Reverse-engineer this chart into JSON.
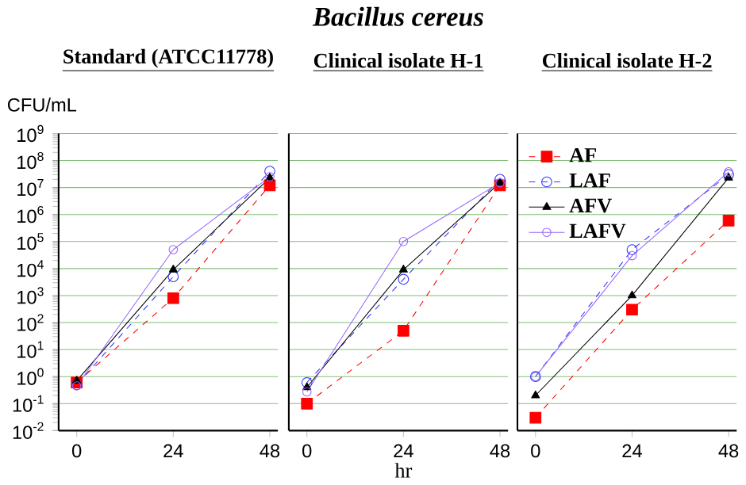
{
  "chart_data": [
    {
      "type": "line",
      "subtitle": "Standard (ATCC11778)",
      "ylabel": "CFU/mL",
      "x": [
        0,
        24,
        48
      ],
      "xlim": [
        -4.5,
        50
      ],
      "xticks": [
        0,
        24,
        48
      ],
      "log": "y",
      "ylim": [
        0.01,
        1000000000.0
      ],
      "grid": "y",
      "yticks": [
        {
          "value": 0.01,
          "label": "10$^{-2}$"
        },
        {
          "value": 0.1,
          "label": "10$^{-1}$"
        },
        {
          "value": 1,
          "label": "10$^{0}$"
        },
        {
          "value": 10,
          "label": "10$^{1}$"
        },
        {
          "value": 100,
          "label": "10$^{2}$"
        },
        {
          "value": 1000,
          "label": "10$^{3}$"
        },
        {
          "value": 10000,
          "label": "10$^{4}$"
        },
        {
          "value": 100000,
          "label": "10$^{5}$"
        },
        {
          "value": 1000000,
          "label": "10$^{6}$"
        },
        {
          "value": 10000000,
          "label": "10$^{7}$"
        },
        {
          "value": 100000000,
          "label": "10$^{8}$"
        },
        {
          "value": 1000000000,
          "label": "10$^{9}$"
        }
      ],
      "series": [
        {
          "color": "#ff0000",
          "marker": "square",
          "line_style": "dashed",
          "values": [
            0.6,
            800,
            12000000.0
          ]
        },
        {
          "color": "#3333ff",
          "marker": "circle",
          "line_style": "dashed",
          "values": [
            0.5,
            5000,
            40000000.0
          ]
        },
        {
          "color": "#000000",
          "marker": "triangle",
          "line_style": "solid",
          "values": [
            0.7,
            9000,
            23000000.0
          ]
        },
        {
          "color": "#9966ff",
          "marker": "circle",
          "line_style": "solid",
          "values": [
            0.45,
            50000,
            25000000.0
          ]
        }
      ]
    },
    {
      "type": "line",
      "title": "Bacillus cereus",
      "subtitle": "Clinical isolate H-1",
      "xlabel": "hr",
      "x": [
        0,
        24,
        48
      ],
      "xlim": [
        -4.5,
        50
      ],
      "xticks": [
        0,
        24,
        48
      ],
      "log": "y",
      "ylim": [
        0.01,
        1000000000.0
      ],
      "grid": "y",
      "tick_labels": "x",
      "yticks": [
        0.01,
        0.1,
        1,
        10,
        100,
        1000,
        10000,
        100000,
        1000000,
        10000000,
        100000000,
        1000000000
      ],
      "series": [
        {
          "color": "#ff0000",
          "marker": "square",
          "line_style": "dashed",
          "values": [
            0.1,
            50,
            12000000.0
          ]
        },
        {
          "color": "#3333ff",
          "marker": "circle",
          "line_style": "dashed",
          "values": [
            0.6,
            4000,
            20000000.0
          ]
        },
        {
          "color": "#000000",
          "marker": "triangle",
          "line_style": "solid",
          "values": [
            0.4,
            9000,
            15000000.0
          ]
        },
        {
          "color": "#9966ff",
          "marker": "circle",
          "line_style": "solid",
          "values": [
            0.27,
            100000,
            15000000.0
          ]
        }
      ]
    },
    {
      "type": "line",
      "subtitle": "Clinical isolate H-2",
      "x": [
        0,
        24,
        48
      ],
      "xlim": [
        -4.5,
        50
      ],
      "xticks": [
        0,
        24,
        48
      ],
      "log": "y",
      "ylim": [
        0.01,
        1000000000.0
      ],
      "grid": "y",
      "tick_labels": "x",
      "legend": "top left",
      "yticks": [
        0.01,
        0.1,
        1,
        10,
        100,
        1000,
        10000,
        100000,
        1000000,
        10000000,
        100000000,
        1000000000
      ],
      "series": [
        {
          "name": "AF",
          "color": "#ff0000",
          "marker": "square",
          "line_style": "dashed",
          "values": [
            0.03,
            300,
            600000.0
          ]
        },
        {
          "name": "LAF",
          "color": "#3333ff",
          "marker": "circle",
          "line_style": "dashed",
          "values": [
            1,
            50000,
            30000000.0
          ]
        },
        {
          "name": "AFV",
          "color": "#000000",
          "marker": "triangle",
          "line_style": "solid",
          "values": [
            0.2,
            1000,
            23000000.0
          ]
        },
        {
          "name": "LAFV",
          "color": "#9966ff",
          "marker": "circle",
          "line_style": "solid",
          "values": [
            1,
            30000,
            38000000.0
          ]
        }
      ]
    }
  ]
}
